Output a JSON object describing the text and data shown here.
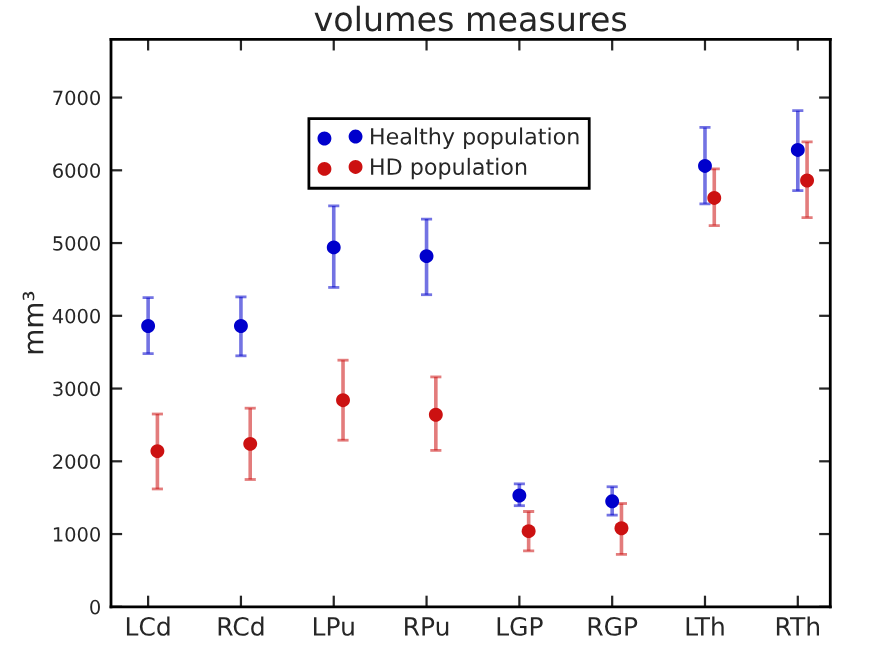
{
  "chart_data": {
    "type": "scatter",
    "title": "volumes measures",
    "ylabel": "mm³",
    "categories": [
      "LCd",
      "RCd",
      "LPu",
      "RPu",
      "LGP",
      "RGP",
      "LTh",
      "RTh"
    ],
    "series": [
      {
        "name": "Healthy population",
        "color": "#0000cc",
        "values": [
          3860,
          3860,
          4940,
          4820,
          1530,
          1450,
          6060,
          6280
        ],
        "errors": [
          [
            3480,
            4250
          ],
          [
            3450,
            4260
          ],
          [
            4390,
            5510
          ],
          [
            4290,
            5330
          ],
          [
            1390,
            1690
          ],
          [
            1260,
            1650
          ],
          [
            5540,
            6590
          ],
          [
            5720,
            6820
          ]
        ]
      },
      {
        "name": "HD population",
        "color": "#cc1111",
        "values": [
          2140,
          2240,
          2840,
          2640,
          1040,
          1080,
          5620,
          5860
        ],
        "errors": [
          [
            1620,
            2650
          ],
          [
            1750,
            2730
          ],
          [
            2290,
            3390
          ],
          [
            2150,
            3160
          ],
          [
            770,
            1310
          ],
          [
            720,
            1420
          ],
          [
            5240,
            6020
          ],
          [
            5350,
            6390
          ]
        ]
      }
    ],
    "ylim": [
      0,
      7800
    ],
    "yticks": [
      0,
      1000,
      2000,
      3000,
      4000,
      5000,
      6000,
      7000
    ],
    "grid": false,
    "legend": "top",
    "marker": "circle"
  }
}
